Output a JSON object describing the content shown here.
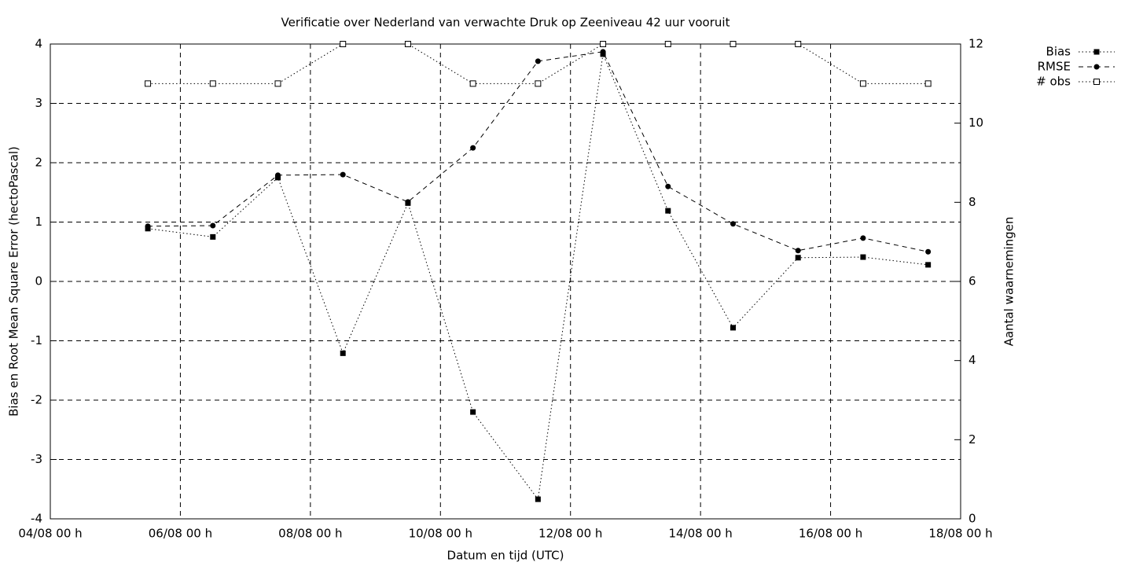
{
  "chart_data": {
    "type": "line",
    "title": "Verificatie over Nederland van verwachte Druk op Zeeniveau 42 uur vooruit",
    "x_label": "Datum en tijd (UTC)",
    "y_label": "Bias en Root Mean Square Error (hectoPascal)",
    "y2_label": "Aantal waarnemingen",
    "x": [
      "05/08 12 h",
      "06/08 12 h",
      "07/08 12 h",
      "08/08 12 h",
      "09/08 12 h",
      "10/08 12 h",
      "11/08 12 h",
      "12/08 12 h",
      "13/08 12 h",
      "14/08 12 h",
      "15/08 12 h",
      "16/08 12 h",
      "17/08 12 h"
    ],
    "xlim": [
      "04/08 00 h",
      "18/08 00 h"
    ],
    "xticks": [
      "04/08 00 h",
      "06/08 00 h",
      "08/08 00 h",
      "10/08 00 h",
      "12/08 00 h",
      "14/08 00 h",
      "16/08 00 h",
      "18/08 00 h"
    ],
    "ylim": [
      -4,
      4
    ],
    "yticks": [
      -4,
      -3,
      -2,
      -1,
      0,
      1,
      2,
      3,
      4
    ],
    "y2lim": [
      0,
      12
    ],
    "y2ticks": [
      0,
      2,
      4,
      6,
      8,
      10,
      12
    ],
    "grid": true,
    "legend": "top-right",
    "series": [
      {
        "name": "Bias",
        "color": "#000000",
        "line": "dotted",
        "marker": "square",
        "values": [
          0.89,
          0.75,
          1.75,
          -1.21,
          1.32,
          -2.2,
          -3.67,
          3.83,
          1.19,
          -0.78,
          0.4,
          0.41,
          0.28
        ]
      },
      {
        "name": "RMSE",
        "color": "#000000",
        "line": "dashed",
        "marker": "circle",
        "values": [
          0.93,
          0.94,
          1.79,
          1.8,
          1.34,
          2.25,
          3.71,
          3.87,
          1.6,
          0.97,
          0.52,
          0.73,
          0.5
        ]
      },
      {
        "name": "# obs",
        "color": "#000000",
        "line": "dotted",
        "marker": "open-square",
        "axis": "y2",
        "values": [
          11,
          11,
          11,
          12,
          12,
          11,
          11,
          12,
          12,
          12,
          12,
          11,
          11
        ]
      }
    ]
  }
}
